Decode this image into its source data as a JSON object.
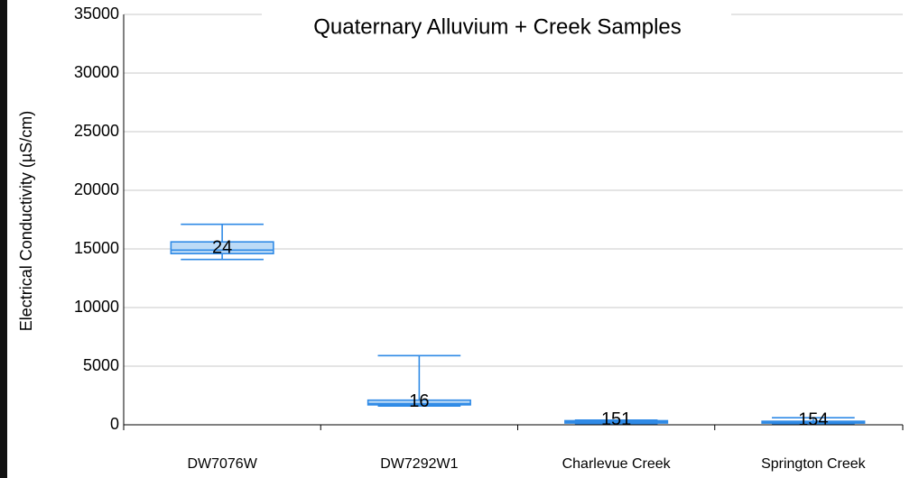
{
  "chart_data": {
    "type": "box",
    "title": "Quaternary Alluvium + Creek Samples",
    "y_label": "Electrical Conductivity (µS/cm)",
    "categories": [
      "DW7076W",
      "DW7292W1",
      "Charlevue Creek",
      "Springton Creek"
    ],
    "boxes": [
      {
        "low": 14100,
        "q1": 14600,
        "median": 14900,
        "q3": 15600,
        "high": 17100,
        "n": 24
      },
      {
        "low": 1600,
        "q1": 1700,
        "median": 1800,
        "q3": 2100,
        "high": 5900,
        "n": 16
      },
      {
        "low": 100,
        "q1": 150,
        "median": 250,
        "q3": 350,
        "high": 400,
        "n": 151
      },
      {
        "low": 100,
        "q1": 150,
        "median": 200,
        "q3": 300,
        "high": 600,
        "n": 154
      }
    ],
    "color": "#2f8ae6",
    "fill": "#bcdaf6",
    "ylim": [
      0,
      35000
    ],
    "yticks": [
      0,
      5000,
      10000,
      15000,
      20000,
      25000,
      30000,
      35000
    ],
    "grid": true
  }
}
